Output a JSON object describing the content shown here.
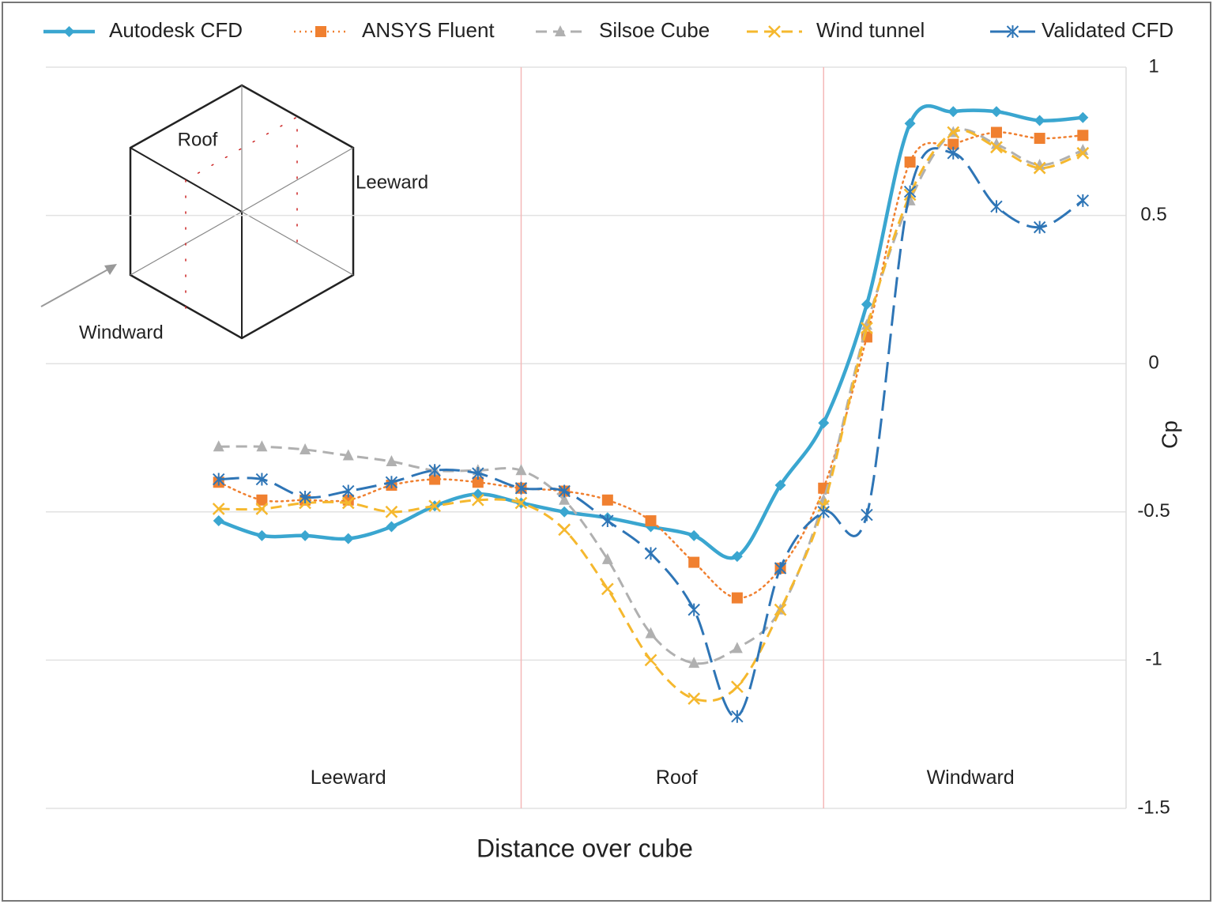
{
  "chart_data": {
    "type": "line",
    "xlabel": "Distance over cube",
    "ylabel": "Cp",
    "legend": "top",
    "grid": true,
    "x": [
      1,
      2,
      3,
      4,
      5,
      6,
      7,
      8,
      9,
      10,
      11,
      12,
      13,
      14,
      15,
      16,
      17,
      18,
      19,
      20,
      21
    ],
    "xlim": [
      -3,
      22
    ],
    "ylim": [
      -1.5,
      1
    ],
    "yticks": [
      1,
      0.5,
      0,
      -0.5,
      -1,
      -1.5
    ],
    "region_lines": [
      8,
      15
    ],
    "annotations": [
      {
        "text": "Leeward",
        "x": 4,
        "y": -1.4
      },
      {
        "text": "Roof",
        "x": 11.6,
        "y": -1.4
      },
      {
        "text": "Windward",
        "x": 18.4,
        "y": -1.4
      }
    ],
    "inset": {
      "labels": [
        "Roof",
        "Leeward",
        "Windward"
      ]
    },
    "series": [
      {
        "name": "Autodesk CFD",
        "color": "#3aa6d0",
        "dash": "solid",
        "marker": "diamond",
        "values": [
          -0.53,
          -0.58,
          -0.58,
          -0.59,
          -0.55,
          -0.48,
          -0.44,
          -0.47,
          -0.5,
          -0.52,
          -0.55,
          -0.58,
          -0.65,
          -0.41,
          -0.2,
          0.2,
          0.81,
          0.85,
          0.85,
          0.82,
          0.83
        ]
      },
      {
        "name": "ANSYS Fluent",
        "color": "#f08030",
        "dash": "dotted",
        "marker": "square",
        "values": [
          -0.4,
          -0.46,
          -0.46,
          -0.46,
          -0.41,
          -0.39,
          -0.4,
          -0.42,
          -0.43,
          -0.46,
          -0.53,
          -0.67,
          -0.79,
          -0.69,
          -0.42,
          0.09,
          0.68,
          0.74,
          0.78,
          0.76,
          0.77
        ]
      },
      {
        "name": "Silsoe Cube",
        "color": "#b0b0b0",
        "dash": "dashed",
        "marker": "triangle",
        "values": [
          -0.28,
          -0.28,
          -0.29,
          -0.31,
          -0.33,
          -0.36,
          -0.36,
          -0.36,
          -0.46,
          -0.66,
          -0.91,
          -1.01,
          -0.96,
          -0.83,
          -0.46,
          0.13,
          0.55,
          0.78,
          0.74,
          0.67,
          0.72
        ]
      },
      {
        "name": "Wind tunnel",
        "color": "#f5b82e",
        "dash": "dashed",
        "marker": "x",
        "values": [
          -0.49,
          -0.49,
          -0.47,
          -0.47,
          -0.5,
          -0.48,
          -0.46,
          -0.47,
          -0.56,
          -0.76,
          -1.0,
          -1.13,
          -1.09,
          -0.83,
          -0.48,
          0.12,
          0.57,
          0.78,
          0.73,
          0.66,
          0.71
        ]
      },
      {
        "name": "Validated CFD",
        "color": "#2e75b6",
        "dash": "longdash",
        "marker": "star",
        "values": [
          -0.39,
          -0.39,
          -0.45,
          -0.43,
          -0.4,
          -0.36,
          -0.37,
          -0.42,
          -0.43,
          -0.53,
          -0.64,
          -0.83,
          -1.19,
          -0.69,
          -0.5,
          -0.51,
          0.58,
          0.71,
          0.53,
          0.46,
          0.55
        ]
      }
    ]
  }
}
